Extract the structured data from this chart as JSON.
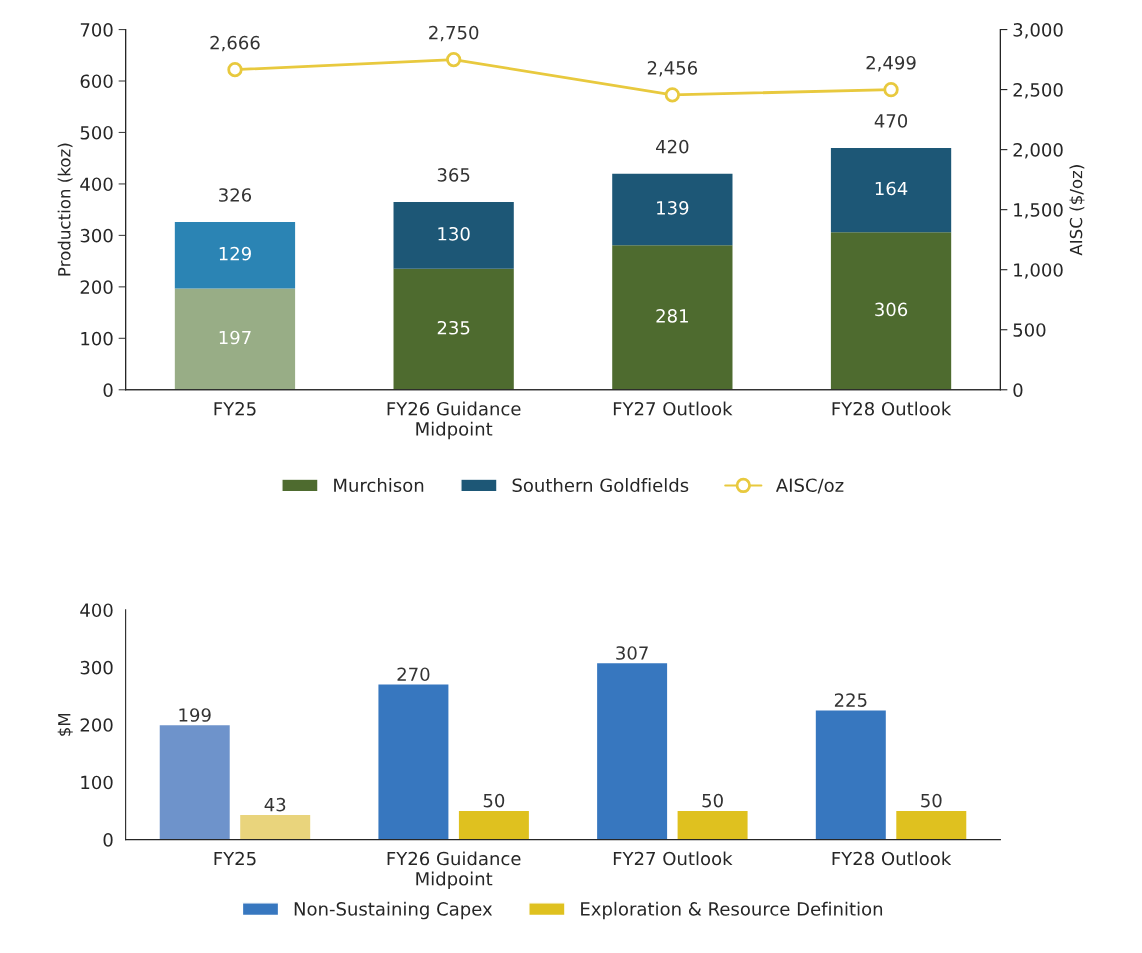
{
  "chart_data": [
    {
      "type": "bar",
      "stacked": true,
      "categories": [
        "FY25",
        "FY26 Guidance\nMidpoint",
        "FY27 Outlook",
        "FY28 Outlook"
      ],
      "ylabel": "Production (koz)",
      "y2label": "AISC ($/oz)",
      "ylim": [
        0,
        700
      ],
      "yticks": [
        0,
        100,
        200,
        300,
        400,
        500,
        600,
        700
      ],
      "y2lim": [
        0,
        3000
      ],
      "y2ticks": [
        0,
        500,
        {
          "value": 1000,
          "label": "1,000"
        },
        {
          "value": 1500,
          "label": "1,500"
        },
        {
          "value": 2000,
          "label": "2,000"
        },
        {
          "value": 2500,
          "label": "2,500"
        },
        {
          "value": 3000,
          "label": "3,000"
        }
      ],
      "data_labels": true,
      "totals": [
        "326",
        "365",
        "420",
        "470"
      ],
      "legend": "bottom",
      "grid": false,
      "series": [
        {
          "name": "Murchison",
          "color": "#4e6b2f",
          "colors": [
            "#98ad86",
            "#4e6b2f",
            "#4e6b2f",
            "#4e6b2f"
          ],
          "values": [
            197,
            235,
            281,
            306
          ]
        },
        {
          "name": "Southern Goldfields",
          "color": "#1d5776",
          "colors": [
            "#2b84b4",
            "#1d5776",
            "#1d5776",
            "#1d5776"
          ],
          "values": [
            129,
            130,
            139,
            164
          ]
        },
        {
          "name": "AISC/oz",
          "type": "line",
          "axis": "y2",
          "marker": "circle",
          "line_style": "solid",
          "color": "#e8c93e",
          "values": [
            2666,
            2750,
            2456,
            2499
          ],
          "value_labels": [
            "2,666",
            "2,750",
            "2,456",
            "2,499"
          ]
        }
      ]
    },
    {
      "type": "bar",
      "categories": [
        "FY25",
        "FY26 Guidance\nMidpoint",
        "FY27 Outlook",
        "FY28 Outlook"
      ],
      "ylabel": "$M",
      "ylim": [
        0,
        400
      ],
      "yticks": [
        0,
        100,
        200,
        300,
        400
      ],
      "data_labels": true,
      "legend": "bottom",
      "grid": false,
      "series": [
        {
          "name": "Non-Sustaining Capex",
          "color": "#3777bf",
          "colors": [
            "#6e93cb",
            "#3777bf",
            "#3777bf",
            "#3777bf"
          ],
          "values": [
            199,
            270,
            307,
            225
          ]
        },
        {
          "name": "Exploration & Resource Definition",
          "color": "#dfc11f",
          "colors": [
            "#e9d47c",
            "#dfc11f",
            "#dfc11f",
            "#dfc11f"
          ],
          "values": [
            43,
            50,
            50,
            50
          ]
        }
      ]
    }
  ]
}
